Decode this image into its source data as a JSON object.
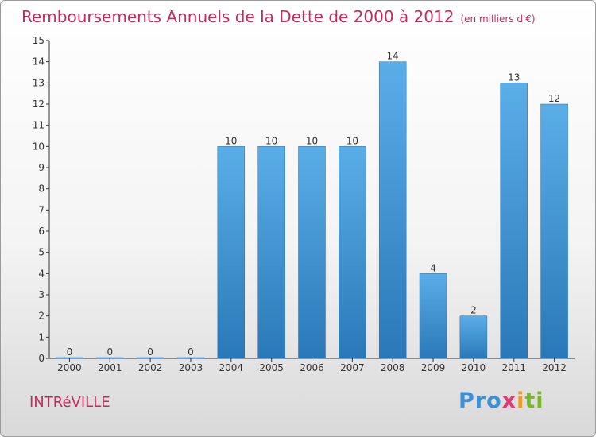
{
  "title": "Remboursements Annuels de la Dette de 2000 à 2012",
  "subtitle": "(en milliers d'€)",
  "commune": "INTRéVILLE",
  "logo": {
    "parts": [
      "Pro",
      "x",
      "i",
      "ti"
    ]
  },
  "colors": {
    "bar_top": "#5aaee8",
    "bar_bottom": "#2a78b8",
    "text": "#c8295d"
  },
  "chart_data": {
    "type": "bar",
    "categories": [
      "2000",
      "2001",
      "2002",
      "2003",
      "2004",
      "2005",
      "2006",
      "2007",
      "2008",
      "2009",
      "2010",
      "2011",
      "2012"
    ],
    "values": [
      0,
      0,
      0,
      0,
      10,
      10,
      10,
      10,
      14,
      4,
      2,
      13,
      12
    ],
    "ylim": [
      0,
      15
    ],
    "yticks": [
      0,
      1,
      2,
      3,
      4,
      5,
      6,
      7,
      8,
      9,
      10,
      11,
      12,
      13,
      14,
      15
    ],
    "grid": false
  }
}
